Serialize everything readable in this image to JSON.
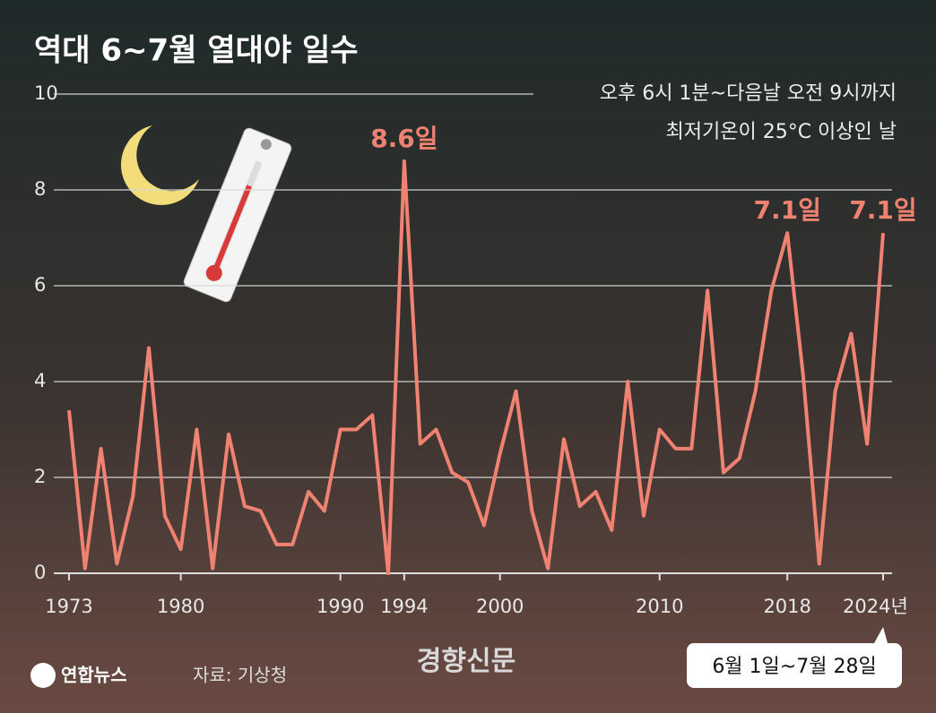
{
  "chart_data": {
    "type": "line",
    "title": "역대 6~7월 열대야 일수",
    "subtitle": [
      "오후 6시 1분~다음날 오전 9시까지",
      "최저기온이 25°C 이상인 날"
    ],
    "x": [
      1973,
      1974,
      1975,
      1976,
      1977,
      1978,
      1979,
      1980,
      1981,
      1982,
      1983,
      1984,
      1985,
      1986,
      1987,
      1988,
      1989,
      1990,
      1991,
      1992,
      1993,
      1994,
      1995,
      1996,
      1997,
      1998,
      1999,
      2000,
      2001,
      2002,
      2003,
      2004,
      2005,
      2006,
      2007,
      2008,
      2009,
      2010,
      2011,
      2012,
      2013,
      2014,
      2015,
      2016,
      2017,
      2018,
      2019,
      2020,
      2021,
      2022,
      2023,
      2024
    ],
    "values": [
      3.4,
      0.1,
      2.6,
      0.2,
      1.6,
      4.7,
      1.2,
      0.5,
      3.0,
      0.1,
      2.9,
      1.4,
      1.3,
      0.6,
      0.6,
      1.7,
      1.3,
      3.0,
      3.0,
      3.3,
      0.0,
      8.6,
      2.7,
      3.0,
      2.1,
      1.9,
      1.0,
      2.5,
      3.8,
      1.3,
      0.1,
      2.8,
      1.4,
      1.7,
      0.9,
      4.0,
      1.2,
      3.0,
      2.6,
      2.6,
      5.9,
      2.1,
      2.4,
      3.8,
      5.9,
      7.1,
      4.1,
      0.2,
      3.8,
      5.0,
      2.7,
      7.1
    ],
    "value_labels": [
      null,
      null,
      null,
      null,
      null,
      null,
      null,
      null,
      null,
      null,
      null,
      null,
      null,
      null,
      null,
      null,
      null,
      null,
      null,
      null,
      null,
      "8.6일",
      null,
      null,
      null,
      null,
      null,
      null,
      null,
      null,
      null,
      null,
      null,
      null,
      null,
      null,
      null,
      null,
      null,
      null,
      null,
      null,
      null,
      null,
      null,
      "7.1일",
      null,
      null,
      null,
      null,
      null,
      "7.1일"
    ],
    "color": "#f08272",
    "xlim": [
      1973,
      2024
    ],
    "xticks": [
      1973,
      1980,
      1990,
      1994,
      2000,
      2010,
      2018,
      {
        "value": 2024,
        "label": "2024년"
      }
    ],
    "ylim": [
      0,
      10
    ],
    "yticks": [
      0,
      2,
      4,
      6,
      8,
      10
    ],
    "grid": true,
    "note": "6월 1일~7월 28일",
    "source": "자료: 기상청",
    "logo": "연합뉴스",
    "watermark": "경향신문"
  }
}
